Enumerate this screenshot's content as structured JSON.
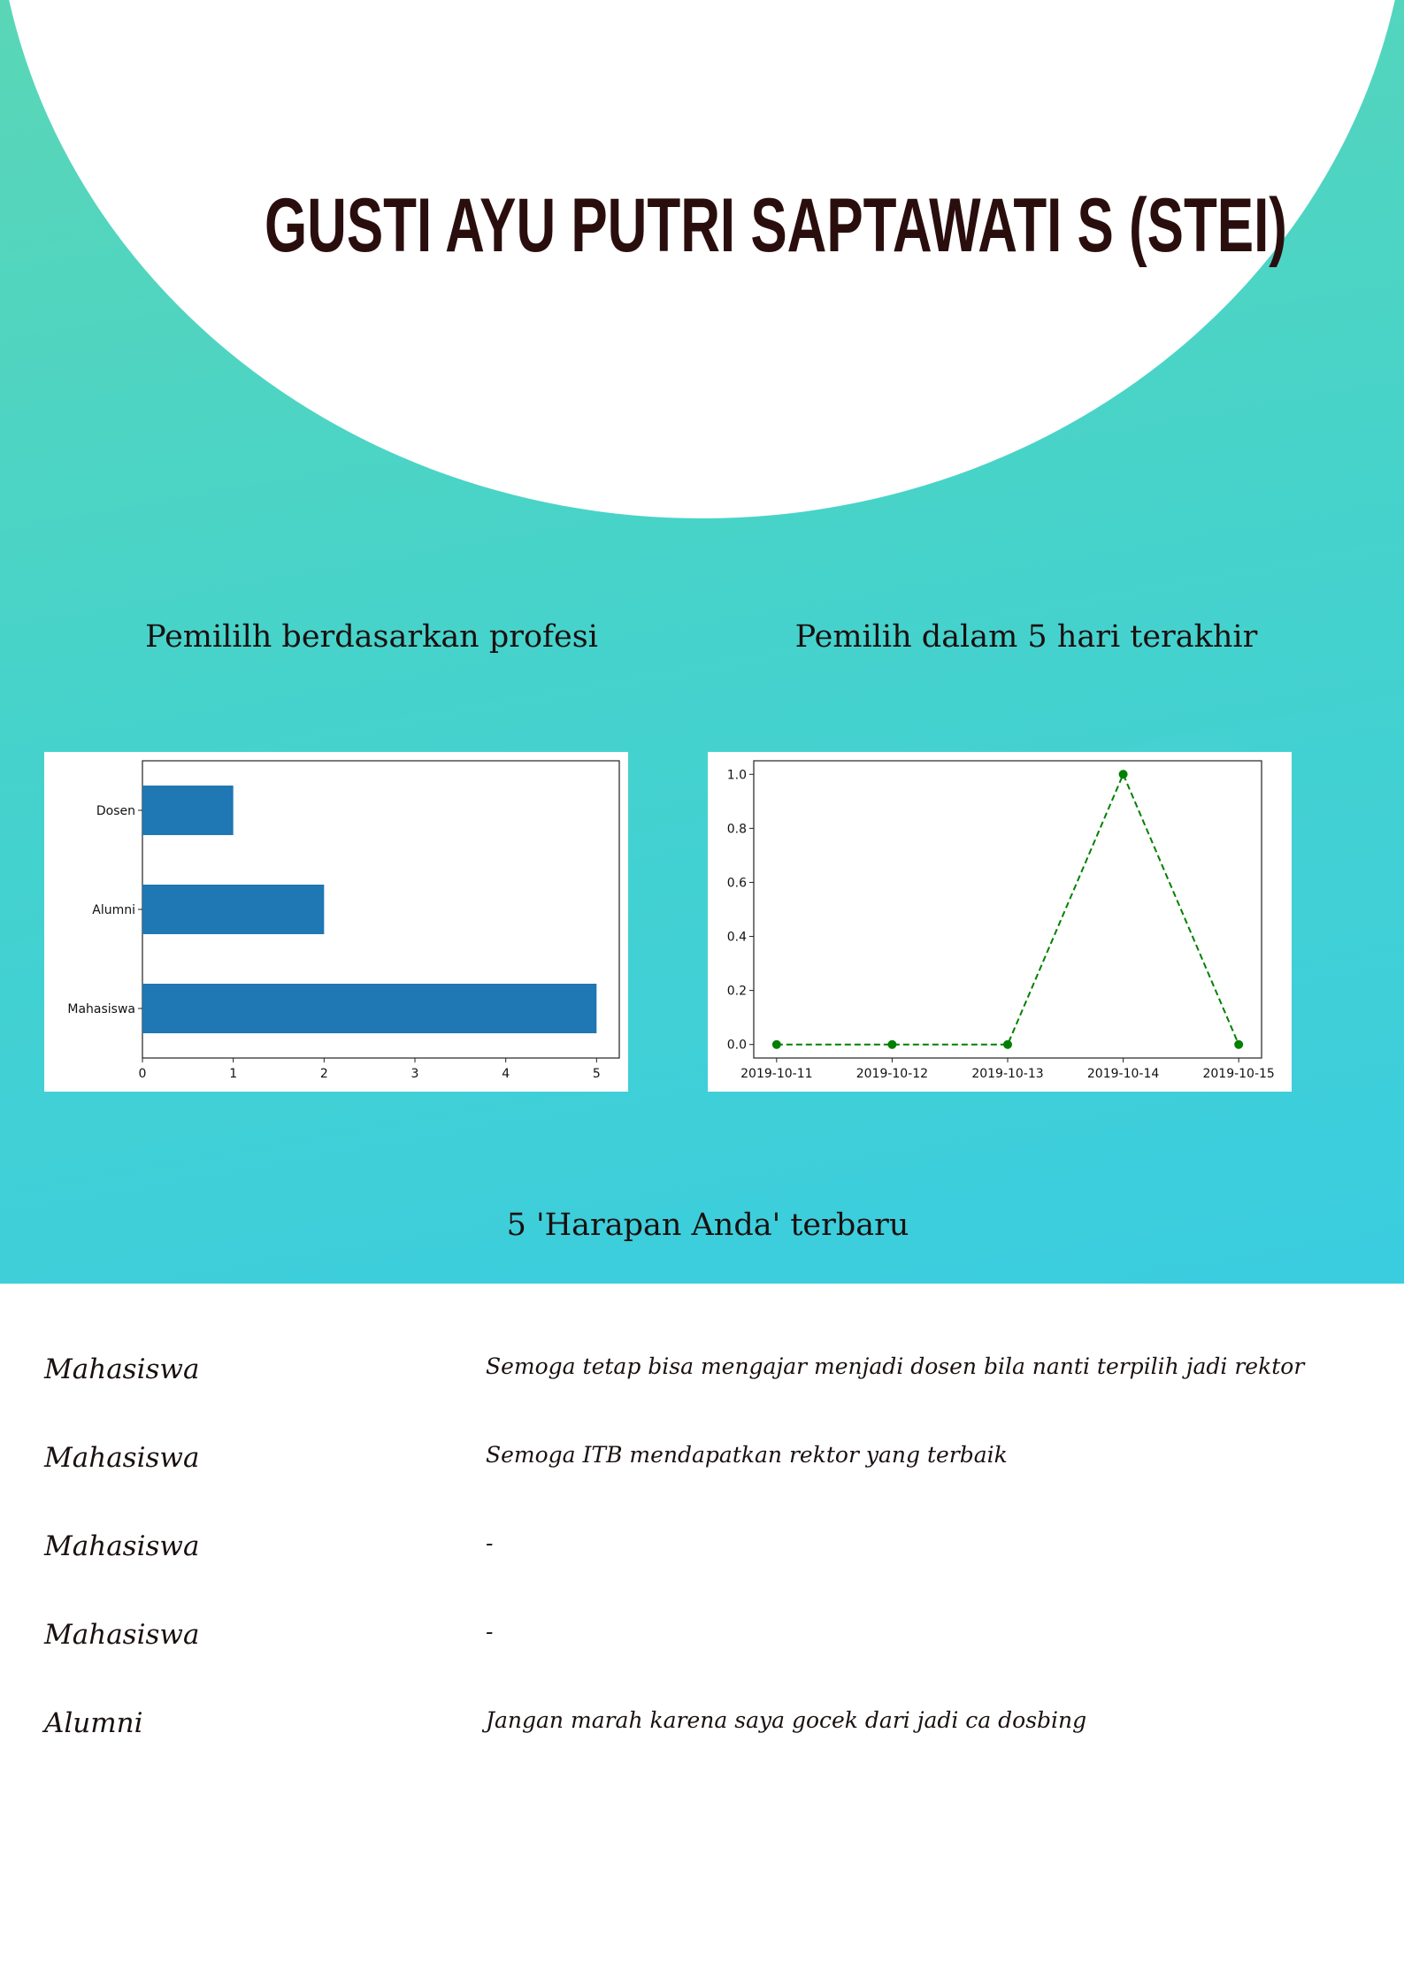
{
  "title": "GUSTI AYU PUTRI SAPTAWATI S (STEI)",
  "sections": {
    "bar_title": "Pemililh berdasarkan profesi",
    "line_title": "Pemilih dalam 5 hari terakhir",
    "wishes_title": "5 'Harapan Anda' terbaru"
  },
  "colors": {
    "bar": "#1f77b4",
    "line": "#008000",
    "gradient_top": "#5ad6b6",
    "gradient_bottom": "#3acde0"
  },
  "chart_data": [
    {
      "type": "bar",
      "orientation": "horizontal",
      "categories": [
        "Dosen",
        "Alumni",
        "Mahasiswa"
      ],
      "values": [
        1,
        2,
        5
      ],
      "xlim": [
        0,
        5.25
      ],
      "xticks": [
        "0",
        "1",
        "2",
        "3",
        "4",
        "5"
      ]
    },
    {
      "type": "line",
      "line_style": "dashed",
      "marker": "circle",
      "x": [
        "2019-10-11",
        "2019-10-12",
        "2019-10-13",
        "2019-10-14",
        "2019-10-15"
      ],
      "y": [
        0.0,
        0.0,
        0.0,
        1.0,
        0.0
      ],
      "ylim": [
        -0.05,
        1.05
      ],
      "yticks": [
        "0.0",
        "0.2",
        "0.4",
        "0.6",
        "0.8",
        "1.0"
      ]
    }
  ],
  "wishes": [
    {
      "role": "Mahasiswa",
      "text": "Semoga tetap bisa mengajar menjadi dosen bila nanti terpilih jadi rektor"
    },
    {
      "role": "Mahasiswa",
      "text": "Semoga ITB mendapatkan rektor yang terbaik"
    },
    {
      "role": "Mahasiswa",
      "text": "-"
    },
    {
      "role": "Mahasiswa",
      "text": "-"
    },
    {
      "role": "Alumni",
      "text": "Jangan marah karena saya gocek dari jadi ca dosbing"
    }
  ]
}
